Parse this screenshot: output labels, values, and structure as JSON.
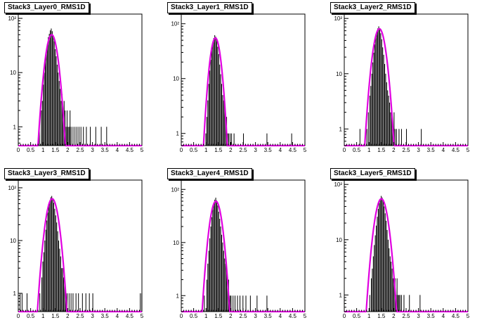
{
  "colors": {
    "histogram": "#000000",
    "fit": "#e000e0",
    "frame": "#000000",
    "background": "#ffffff"
  },
  "chart_data": [
    {
      "type": "bar",
      "title": "Stack3_Layer0_RMS1D",
      "xlim": [
        0,
        5
      ],
      "ylim": [
        0.45,
        120
      ],
      "yscale": "log",
      "xticks": [
        "0",
        "0.5",
        "1",
        "1.5",
        "2",
        "2.5",
        "3",
        "3.5",
        "4",
        "4.5",
        "5"
      ],
      "yticks": [
        {
          "value": 1,
          "label": "1"
        },
        {
          "value": 10,
          "label": "10"
        },
        {
          "value": 100,
          "label": "10²"
        }
      ],
      "fit": {
        "type": "gaussian",
        "peak": 50,
        "mean": 1.35,
        "sigma": 0.18
      },
      "bin_width": 0.02,
      "bins": [
        [
          0.84,
          1
        ],
        [
          0.92,
          2
        ],
        [
          0.96,
          3
        ],
        [
          1.0,
          6
        ],
        [
          1.04,
          10
        ],
        [
          1.08,
          18
        ],
        [
          1.12,
          26
        ],
        [
          1.16,
          34
        ],
        [
          1.2,
          45
        ],
        [
          1.24,
          52
        ],
        [
          1.28,
          60
        ],
        [
          1.32,
          65
        ],
        [
          1.36,
          58
        ],
        [
          1.4,
          48
        ],
        [
          1.44,
          38
        ],
        [
          1.48,
          27
        ],
        [
          1.52,
          20
        ],
        [
          1.56,
          14
        ],
        [
          1.6,
          10
        ],
        [
          1.64,
          7
        ],
        [
          1.68,
          5
        ],
        [
          1.72,
          3
        ],
        [
          1.76,
          4
        ],
        [
          1.8,
          2
        ],
        [
          1.84,
          3
        ],
        [
          1.88,
          2
        ],
        [
          1.92,
          1
        ],
        [
          1.96,
          2
        ],
        [
          2.0,
          1
        ],
        [
          2.04,
          1
        ],
        [
          2.08,
          2
        ],
        [
          2.12,
          1
        ],
        [
          2.2,
          1
        ],
        [
          2.28,
          1
        ],
        [
          2.36,
          1
        ],
        [
          2.44,
          1
        ],
        [
          2.52,
          1
        ],
        [
          2.62,
          1
        ],
        [
          2.74,
          1
        ],
        [
          2.9,
          1
        ],
        [
          3.12,
          1
        ],
        [
          3.34,
          1
        ],
        [
          3.56,
          1
        ]
      ]
    },
    {
      "type": "bar",
      "title": "Stack3_Layer1_RMS1D",
      "xlim": [
        0,
        5
      ],
      "ylim": [
        0.6,
        150
      ],
      "yscale": "log",
      "xticks": [
        "0",
        "0.5",
        "1",
        "1.5",
        "2",
        "2.5",
        "3",
        "3.5",
        "4",
        "4.5",
        "5"
      ],
      "yticks": [
        {
          "value": 1,
          "label": "1"
        },
        {
          "value": 10,
          "label": "10"
        },
        {
          "value": 100,
          "label": "10²"
        }
      ],
      "fit": {
        "type": "gaussian",
        "peak": 55,
        "mean": 1.38,
        "sigma": 0.16
      },
      "bin_width": 0.02,
      "bins": [
        [
          0.98,
          1
        ],
        [
          1.02,
          2
        ],
        [
          1.06,
          4
        ],
        [
          1.1,
          8
        ],
        [
          1.14,
          14
        ],
        [
          1.18,
          22
        ],
        [
          1.22,
          32
        ],
        [
          1.26,
          44
        ],
        [
          1.3,
          55
        ],
        [
          1.34,
          62
        ],
        [
          1.38,
          58
        ],
        [
          1.42,
          50
        ],
        [
          1.46,
          38
        ],
        [
          1.5,
          28
        ],
        [
          1.54,
          18
        ],
        [
          1.58,
          12
        ],
        [
          1.62,
          8
        ],
        [
          1.66,
          5
        ],
        [
          1.7,
          4
        ],
        [
          1.74,
          3
        ],
        [
          1.78,
          2
        ],
        [
          1.82,
          2
        ],
        [
          1.86,
          1
        ],
        [
          1.9,
          1
        ],
        [
          1.96,
          1
        ],
        [
          2.02,
          1
        ],
        [
          2.12,
          1
        ],
        [
          2.5,
          1
        ],
        [
          3.45,
          1
        ],
        [
          4.45,
          1
        ]
      ]
    },
    {
      "type": "bar",
      "title": "Stack3_Layer2_RMS1D",
      "xlim": [
        0,
        5
      ],
      "ylim": [
        0.5,
        120
      ],
      "yscale": "log",
      "xticks": [
        "0",
        "0.5",
        "1",
        "1.5",
        "2",
        "2.5",
        "3",
        "3.5",
        "4",
        "4.5",
        "5"
      ],
      "yticks": [
        {
          "value": 1,
          "label": "1"
        },
        {
          "value": 10,
          "label": "10"
        },
        {
          "value": 100,
          "label": "10²"
        }
      ],
      "fit": {
        "type": "gaussian",
        "peak": 65,
        "mean": 1.42,
        "sigma": 0.19
      },
      "bin_width": 0.02,
      "bins": [
        [
          0.62,
          1
        ],
        [
          0.9,
          1
        ],
        [
          0.96,
          2
        ],
        [
          1.02,
          4
        ],
        [
          1.06,
          6
        ],
        [
          1.1,
          10
        ],
        [
          1.14,
          16
        ],
        [
          1.18,
          24
        ],
        [
          1.22,
          34
        ],
        [
          1.26,
          44
        ],
        [
          1.3,
          56
        ],
        [
          1.34,
          66
        ],
        [
          1.38,
          72
        ],
        [
          1.42,
          64
        ],
        [
          1.46,
          54
        ],
        [
          1.5,
          42
        ],
        [
          1.54,
          30
        ],
        [
          1.58,
          22
        ],
        [
          1.62,
          15
        ],
        [
          1.66,
          10
        ],
        [
          1.7,
          7
        ],
        [
          1.74,
          5
        ],
        [
          1.78,
          4
        ],
        [
          1.82,
          3
        ],
        [
          1.86,
          2
        ],
        [
          1.9,
          2
        ],
        [
          1.94,
          1
        ],
        [
          2.0,
          2
        ],
        [
          2.04,
          1
        ],
        [
          2.1,
          1
        ],
        [
          2.2,
          1
        ],
        [
          2.3,
          1
        ],
        [
          2.5,
          1
        ],
        [
          3.1,
          1
        ]
      ]
    },
    {
      "type": "bar",
      "title": "Stack3_Layer3_RMS1D",
      "xlim": [
        0,
        5
      ],
      "ylim": [
        0.45,
        140
      ],
      "yscale": "log",
      "xticks": [
        "0",
        "0.5",
        "1",
        "1.5",
        "2",
        "2.5",
        "3",
        "3.5",
        "4",
        "4.5",
        "5"
      ],
      "yticks": [
        {
          "value": 1,
          "label": "1"
        },
        {
          "value": 10,
          "label": "10"
        },
        {
          "value": 100,
          "label": "10²"
        }
      ],
      "fit": {
        "type": "gaussian",
        "peak": 62,
        "mean": 1.37,
        "sigma": 0.19
      },
      "bin_width": 0.02,
      "bins": [
        [
          0.06,
          1
        ],
        [
          0.14,
          1
        ],
        [
          0.34,
          1
        ],
        [
          0.86,
          1
        ],
        [
          0.94,
          2
        ],
        [
          0.98,
          4
        ],
        [
          1.02,
          6
        ],
        [
          1.06,
          10
        ],
        [
          1.1,
          16
        ],
        [
          1.14,
          24
        ],
        [
          1.18,
          34
        ],
        [
          1.22,
          45
        ],
        [
          1.26,
          56
        ],
        [
          1.3,
          66
        ],
        [
          1.34,
          70
        ],
        [
          1.38,
          62
        ],
        [
          1.42,
          52
        ],
        [
          1.46,
          40
        ],
        [
          1.5,
          30
        ],
        [
          1.54,
          22
        ],
        [
          1.58,
          15
        ],
        [
          1.62,
          10
        ],
        [
          1.66,
          7
        ],
        [
          1.7,
          5
        ],
        [
          1.74,
          3
        ],
        [
          1.78,
          3
        ],
        [
          1.82,
          2
        ],
        [
          1.86,
          2
        ],
        [
          1.9,
          1
        ],
        [
          1.96,
          1
        ],
        [
          2.04,
          1
        ],
        [
          2.12,
          1
        ],
        [
          2.2,
          1
        ],
        [
          2.32,
          1
        ],
        [
          2.42,
          1
        ],
        [
          2.58,
          1
        ],
        [
          2.72,
          1
        ],
        [
          2.86,
          1
        ],
        [
          3.0,
          1
        ],
        [
          4.92,
          1
        ],
        [
          4.98,
          1
        ]
      ]
    },
    {
      "type": "bar",
      "title": "Stack3_Layer4_RMS1D",
      "xlim": [
        0,
        5
      ],
      "ylim": [
        0.5,
        150
      ],
      "yscale": "log",
      "xticks": [
        "0",
        "0.5",
        "1",
        "1.5",
        "2",
        "2.5",
        "3",
        "3.5",
        "4",
        "4.5",
        "5"
      ],
      "yticks": [
        {
          "value": 1,
          "label": "1"
        },
        {
          "value": 10,
          "label": "10"
        },
        {
          "value": 100,
          "label": "10²"
        }
      ],
      "fit": {
        "type": "gaussian",
        "peak": 60,
        "mean": 1.4,
        "sigma": 0.18
      },
      "bin_width": 0.02,
      "bins": [
        [
          0.92,
          1
        ],
        [
          1.02,
          2
        ],
        [
          1.06,
          4
        ],
        [
          1.1,
          7
        ],
        [
          1.14,
          12
        ],
        [
          1.18,
          20
        ],
        [
          1.22,
          30
        ],
        [
          1.26,
          42
        ],
        [
          1.3,
          54
        ],
        [
          1.34,
          64
        ],
        [
          1.38,
          70
        ],
        [
          1.42,
          62
        ],
        [
          1.46,
          50
        ],
        [
          1.5,
          38
        ],
        [
          1.54,
          28
        ],
        [
          1.58,
          20
        ],
        [
          1.62,
          14
        ],
        [
          1.66,
          10
        ],
        [
          1.7,
          7
        ],
        [
          1.74,
          5
        ],
        [
          1.78,
          4
        ],
        [
          1.82,
          3
        ],
        [
          1.86,
          2
        ],
        [
          1.9,
          2
        ],
        [
          1.96,
          1
        ],
        [
          2.0,
          1
        ],
        [
          2.08,
          1
        ],
        [
          2.16,
          1
        ],
        [
          2.26,
          1
        ],
        [
          2.36,
          1
        ],
        [
          2.48,
          1
        ],
        [
          2.6,
          1
        ],
        [
          2.78,
          1
        ],
        [
          3.05,
          1
        ],
        [
          3.45,
          1
        ]
      ]
    },
    {
      "type": "bar",
      "title": "Stack3_Layer5_RMS1D",
      "xlim": [
        0,
        5
      ],
      "ylim": [
        0.5,
        120
      ],
      "yscale": "log",
      "xticks": [
        "0",
        "0.5",
        "1",
        "1.5",
        "2",
        "2.5",
        "3",
        "3.5",
        "4",
        "4.5",
        "5"
      ],
      "yticks": [
        {
          "value": 1,
          "label": "1"
        },
        {
          "value": 10,
          "label": "10"
        },
        {
          "value": 100,
          "label": "10²"
        }
      ],
      "fit": {
        "type": "gaussian",
        "peak": 55,
        "mean": 1.5,
        "sigma": 0.2
      },
      "bin_width": 0.02,
      "bins": [
        [
          1.02,
          1
        ],
        [
          1.08,
          2
        ],
        [
          1.12,
          3
        ],
        [
          1.16,
          5
        ],
        [
          1.2,
          8
        ],
        [
          1.24,
          12
        ],
        [
          1.28,
          18
        ],
        [
          1.32,
          26
        ],
        [
          1.36,
          36
        ],
        [
          1.4,
          46
        ],
        [
          1.44,
          54
        ],
        [
          1.48,
          62
        ],
        [
          1.52,
          58
        ],
        [
          1.56,
          50
        ],
        [
          1.6,
          40
        ],
        [
          1.64,
          30
        ],
        [
          1.68,
          22
        ],
        [
          1.72,
          15
        ],
        [
          1.76,
          10
        ],
        [
          1.8,
          7
        ],
        [
          1.84,
          5
        ],
        [
          1.88,
          4
        ],
        [
          1.92,
          3
        ],
        [
          1.96,
          2
        ],
        [
          2.0,
          2
        ],
        [
          2.04,
          2
        ],
        [
          2.08,
          1
        ],
        [
          2.12,
          2
        ],
        [
          2.16,
          1
        ],
        [
          2.2,
          1
        ],
        [
          2.24,
          1
        ],
        [
          2.3,
          1
        ],
        [
          2.4,
          1
        ],
        [
          2.62,
          1
        ],
        [
          3.05,
          1
        ]
      ]
    }
  ]
}
